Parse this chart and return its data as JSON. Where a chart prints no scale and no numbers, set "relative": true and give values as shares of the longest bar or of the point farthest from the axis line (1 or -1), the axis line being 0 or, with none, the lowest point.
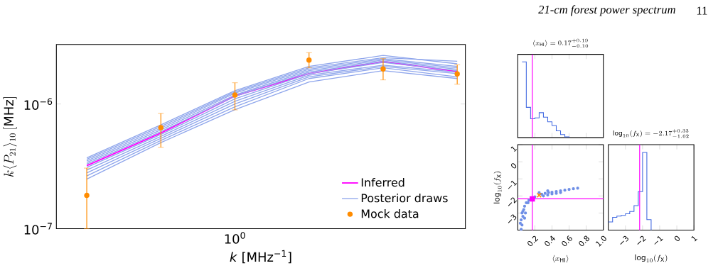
{
  "chart_data": [
    {
      "type": "line",
      "xlabel": "*k* [MHz$^{−1}$]",
      "ylabel": "k\\langle P_{21}\\rangle_{10}\\,[\\mathrm{MHz}]",
      "annotations": [
        "21-cm forest power spectrum",
        "11"
      ],
      "log": "y",
      "ylim": [
        1e-07,
        3e-06
      ],
      "yticks": [
        {
          "value": 1e-07,
          "label": "10$^{−7}$"
        },
        {
          "value": 1e-06,
          "label": "10$^{−6}$"
        }
      ],
      "legend": "bottom right",
      "categories": [
        null,
        null,
        "10$^{0}$",
        null,
        null,
        null
      ],
      "series": [
        {
          "name": "Inferred",
          "color": "#ff00ff",
          "values": [
            3.2e-07,
            5.85e-07,
            1.16e-06,
            1.75e-06,
            2.19e-06,
            1.82e-06
          ]
        },
        {
          "name": "Posterior draws",
          "color": "#8fa6ec",
          "values": [
            3.7e-07,
            6.8e-07,
            1.28e-06,
            2e-06,
            2.45e-06,
            2.1e-06
          ]
        },
        {
          "color": "#8fa6ec",
          "values": [
            3.6e-07,
            6.6e-07,
            1.25e-06,
            1.95e-06,
            2.35e-06,
            2.2e-06
          ]
        },
        {
          "color": "#8fa6ec",
          "values": [
            3.5e-07,
            6.4e-07,
            1.22e-06,
            1.9e-06,
            2.3e-06,
            2e-06
          ]
        },
        {
          "color": "#8fa6ec",
          "values": [
            3.4e-07,
            6.2e-07,
            1.18e-06,
            1.85e-06,
            2.25e-06,
            1.95e-06
          ]
        },
        {
          "color": "#8fa6ec",
          "values": [
            3.3e-07,
            6e-07,
            1.15e-06,
            1.8e-06,
            2.2e-06,
            1.9e-06
          ]
        },
        {
          "color": "#8fa6ec",
          "values": [
            3.1e-07,
            5.7e-07,
            1.1e-06,
            1.75e-06,
            2.15e-06,
            1.85e-06
          ]
        },
        {
          "color": "#8fa6ec",
          "values": [
            2.95e-07,
            5.5e-07,
            1.05e-06,
            1.7e-06,
            2.05e-06,
            1.8e-06
          ]
        },
        {
          "color": "#8fa6ec",
          "values": [
            2.8e-07,
            5.3e-07,
            1e-06,
            1.65e-06,
            2e-06,
            1.75e-06
          ]
        },
        {
          "color": "#8fa6ec",
          "values": [
            2.65e-07,
            5.1e-07,
            9.5e-07,
            1.6e-06,
            1.95e-06,
            1.65e-06
          ]
        },
        {
          "color": "#8fa6ec",
          "values": [
            2.5e-07,
            4.9e-07,
            9e-07,
            1.5e-06,
            1.85e-06,
            1.6e-06
          ]
        },
        {
          "name": "Mock data",
          "type": "scatter",
          "marker": "circle",
          "color": "#ff8c00",
          "values": [
            1.85e-07,
            6.47e-07,
            1.18e-06,
            2.25e-06,
            1.91e-06,
            1.74e-06
          ],
          "errors": [
            [
              1e-07,
              3.06e-07
            ],
            [
              4.5e-07,
              8.4e-07
            ],
            [
              8.97e-07,
              1.48e-06
            ],
            [
              1.95e-06,
              2.58e-06
            ],
            [
              1.56e-06,
              2.31e-06
            ],
            [
              1.44e-06,
              2.06e-06
            ]
          ]
        }
      ]
    },
    {
      "type": "step",
      "title": "\\langle x_{\\rm HI}\\rangle = 0.17^{+0.19}_{-0.10}",
      "relative": true,
      "color": "#4169e1",
      "x": [
        0.05,
        0.1,
        0.15,
        0.2,
        0.25,
        0.3,
        0.35,
        0.4,
        0.45,
        0.5,
        0.55,
        0.6
      ],
      "values": [
        1.0,
        0.4,
        0.25,
        0.26,
        0.33,
        0.27,
        0.21,
        0.16,
        0.09,
        0.04,
        0.01,
        0
      ],
      "xlim": [
        0,
        1
      ],
      "xticks": [
        0.2,
        0.4,
        0.6,
        0.8,
        1.0
      ],
      "tick_labels": false,
      "ref_lines": [
        {
          "axis": "x",
          "value": 0.17,
          "color": "#ff00ff"
        }
      ]
    },
    {
      "type": "scatter",
      "xlabel": "\\langle x_{\\rm HI}\\rangle",
      "ylabel": "\\log_{10}(f_{\\rm X})",
      "xlim": [
        0,
        1
      ],
      "ylim": [
        -4,
        1
      ],
      "xticks": [
        0.2,
        0.4,
        0.6,
        0.8,
        {
          "value": 1,
          "label": "1.0"
        }
      ],
      "yticks": [
        {
          "value": -3,
          "label": "−3"
        },
        {
          "value": -2,
          "label": "−2"
        },
        {
          "value": -1,
          "label": "−1"
        },
        0,
        1
      ],
      "ref_lines": [
        {
          "axis": "x",
          "value": 0.17,
          "color": "#ff00ff"
        },
        {
          "axis": "y",
          "value": -2.17,
          "color": "#ff00ff"
        }
      ],
      "series": [
        {
          "color": "#6f8fe6",
          "marker": "circle",
          "x": [
            0.04,
            0.05,
            0.04,
            0.06,
            0.05,
            0.07,
            0.08,
            0.1,
            0.13,
            0.2,
            0.24,
            0.28,
            0.32,
            0.36,
            0.4,
            0.45,
            0.5,
            0.55,
            0.6,
            0.65,
            0.7,
            0.03,
            0.08,
            0.09,
            0.25,
            0.3,
            0.35,
            0.4,
            0.45,
            0.25,
            0.35,
            0.5,
            0.12,
            0.06
          ],
          "values": [
            -3.95,
            -3.7,
            -3.4,
            -3.2,
            -3.0,
            -2.8,
            -2.6,
            -2.4,
            -2.25,
            -2.05,
            null,
            -1.9,
            -1.85,
            -1.8,
            -1.78,
            -1.74,
            -1.7,
            -1.66,
            -1.62,
            -1.58,
            -1.55,
            -3.6,
            -3.3,
            -3.0,
            null,
            -2.0,
            -1.95,
            -1.88,
            -1.85,
            -1.8,
            -1.7,
            -1.8,
            -2.4,
            -2.9
          ]
        },
        {
          "color": "#ff00ff",
          "marker": "square",
          "x": [
            0.17
          ],
          "values": [
            -2.17
          ]
        },
        {
          "color": "#ff8c00",
          "marker": "cross",
          "x": [
            0.25
          ],
          "values": [
            -1.96
          ]
        }
      ]
    },
    {
      "type": "step",
      "title": "\\log_{10}(f_{\\rm X}) = -2.17^{+0.33}_{-1.02}",
      "xlabel": "\\log_{10}(f_{\\rm X})",
      "relative": true,
      "color": "#4169e1",
      "x": [
        -4,
        -3.75,
        -3.5,
        -3.25,
        -3,
        -2.75,
        -2.5,
        -2.25,
        -2,
        -1.75,
        -1.5
      ],
      "values": [
        0.105,
        0.165,
        0.18,
        0.19,
        0.21,
        0.24,
        0.315,
        0.495,
        1.0,
        0.135,
        0
      ],
      "xlim": [
        -4,
        1
      ],
      "xticks": [
        {
          "value": -3,
          "label": "−3"
        },
        {
          "value": -2,
          "label": "−2"
        },
        {
          "value": -1,
          "label": "−1"
        },
        0,
        1
      ],
      "tick_labels": "x",
      "ref_lines": [
        {
          "axis": "x",
          "value": -2.17,
          "color": "#ff00ff"
        }
      ]
    }
  ]
}
